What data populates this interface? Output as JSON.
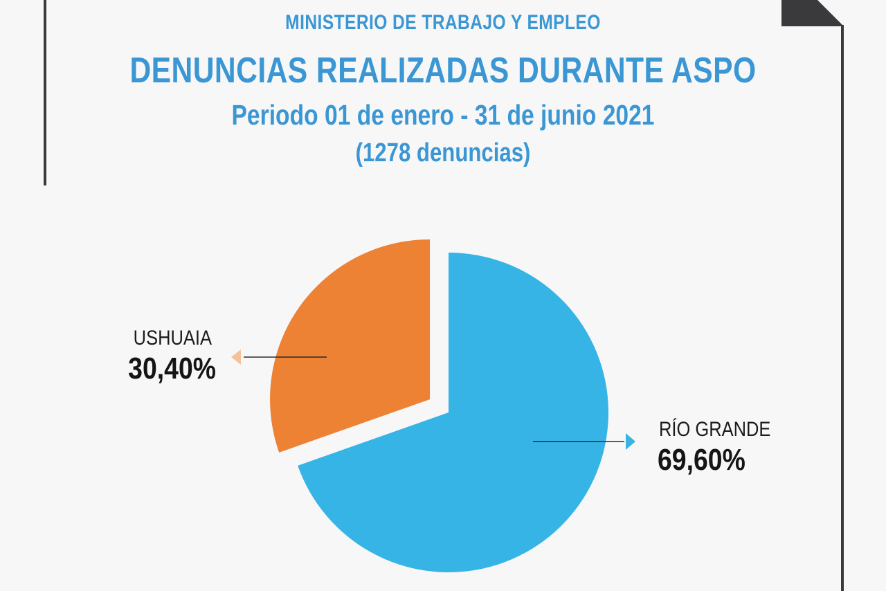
{
  "header": {
    "ministry": "MINISTERIO DE TRABAJO Y EMPLEO",
    "title": "DENUNCIAS REALIZADAS DURANTE ASPO",
    "period": "Periodo  01 de enero - 31 de junio 2021",
    "count": "(1278 denuncias)"
  },
  "colors": {
    "accent_text": "#3a97d4",
    "frame": "#3a3a3c",
    "background": "#f7f7f8"
  },
  "chart_data": {
    "type": "pie",
    "total_label": "(1278 denuncias)",
    "series": [
      {
        "name": "RÍO GRANDE",
        "value": 69.6,
        "label": "69,60%",
        "color": "#37b4e6",
        "arrow_color": "#37b4e6"
      },
      {
        "name": "USHUAIA",
        "value": 30.4,
        "label": "30,40%",
        "color": "#ed8134",
        "arrow_color": "#f6c19a",
        "exploded": true
      }
    ]
  }
}
